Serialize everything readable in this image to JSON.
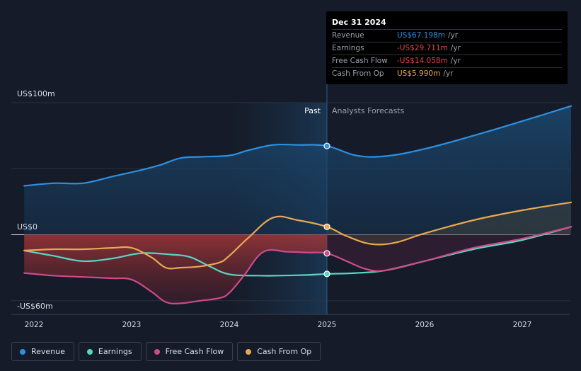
{
  "chart_data": {
    "type": "line",
    "x_ticks": [
      "2022",
      "2023",
      "2024",
      "2025",
      "2026",
      "2027"
    ],
    "y_axis_labels": {
      "top": "US$100m",
      "zero": "US$0",
      "bottom": "-US$60m"
    },
    "ylim": [
      -60,
      100
    ],
    "past_label": "Past",
    "forecast_label": "Analysts Forecasts",
    "divider_x": 2025.0,
    "series": [
      {
        "name": "Revenue",
        "color": "#2f8fde",
        "x": [
          2021.9,
          2022.2,
          2022.5,
          2022.8,
          2023.1,
          2023.3,
          2023.5,
          2023.7,
          2024.0,
          2024.2,
          2024.45,
          2024.7,
          2025.0,
          2025.3,
          2025.6,
          2026.0,
          2026.5,
          2027.0,
          2027.5
        ],
        "values": [
          37,
          39,
          39,
          44,
          49,
          53,
          58,
          59,
          60,
          64,
          68,
          68,
          67.2,
          60,
          59.5,
          65,
          75,
          86,
          97.5
        ]
      },
      {
        "name": "Earnings",
        "color": "#58d6c4",
        "x": [
          2021.9,
          2022.2,
          2022.5,
          2022.8,
          2023.1,
          2023.4,
          2023.6,
          2023.8,
          2024.0,
          2024.3,
          2024.5,
          2024.8,
          2025.0,
          2025.3,
          2025.6,
          2026.0,
          2026.5,
          2027.0,
          2027.5
        ],
        "values": [
          -12,
          -16,
          -20,
          -18,
          -14,
          -15,
          -17,
          -24,
          -30,
          -31,
          -31,
          -30.5,
          -29.7,
          -29,
          -27,
          -20,
          -11,
          -4,
          6
        ]
      },
      {
        "name": "Free Cash Flow",
        "color": "#cf4a8a",
        "x": [
          2021.9,
          2022.2,
          2022.5,
          2022.8,
          2023.0,
          2023.2,
          2023.35,
          2023.5,
          2023.7,
          2023.9,
          2024.0,
          2024.15,
          2024.35,
          2024.6,
          2024.8,
          2025.0,
          2025.2,
          2025.4,
          2025.6,
          2026.0,
          2026.5,
          2027.0,
          2027.5
        ],
        "values": [
          -29,
          -31,
          -32,
          -33,
          -34,
          -43,
          -51,
          -52,
          -50,
          -48,
          -44,
          -31,
          -13,
          -13,
          -13.5,
          -14.1,
          -20,
          -26,
          -27,
          -20,
          -10,
          -3,
          6
        ]
      },
      {
        "name": "Cash From Op",
        "color": "#e9a951",
        "x": [
          2021.9,
          2022.2,
          2022.5,
          2022.8,
          2023.0,
          2023.2,
          2023.35,
          2023.5,
          2023.7,
          2023.9,
          2024.0,
          2024.2,
          2024.45,
          2024.7,
          2025.0,
          2025.2,
          2025.45,
          2025.7,
          2026.0,
          2026.5,
          2027.0,
          2027.5
        ],
        "values": [
          -12,
          -11,
          -11,
          -10,
          -10,
          -17,
          -25,
          -25,
          -24,
          -21,
          -16,
          -2,
          13,
          11,
          6,
          -1,
          -7,
          -6,
          1,
          11,
          18.5,
          24.5
        ]
      }
    ]
  },
  "tooltip": {
    "date": "Dec 31 2024",
    "rows": [
      {
        "label": "Revenue",
        "value": "US$67.198m",
        "unit": "/yr",
        "color": "#2f8fde"
      },
      {
        "label": "Earnings",
        "value": "-US$29.711m",
        "unit": "/yr",
        "color": "#e04848"
      },
      {
        "label": "Free Cash Flow",
        "value": "-US$14.058m",
        "unit": "/yr",
        "color": "#e04848"
      },
      {
        "label": "Cash From Op",
        "value": "US$5.990m",
        "unit": "/yr",
        "color": "#e9a951"
      }
    ]
  },
  "legend": [
    {
      "label": "Revenue",
      "color": "#2f8fde"
    },
    {
      "label": "Earnings",
      "color": "#58d6c4"
    },
    {
      "label": "Free Cash Flow",
      "color": "#cf4a8a"
    },
    {
      "label": "Cash From Op",
      "color": "#e9a951"
    }
  ]
}
